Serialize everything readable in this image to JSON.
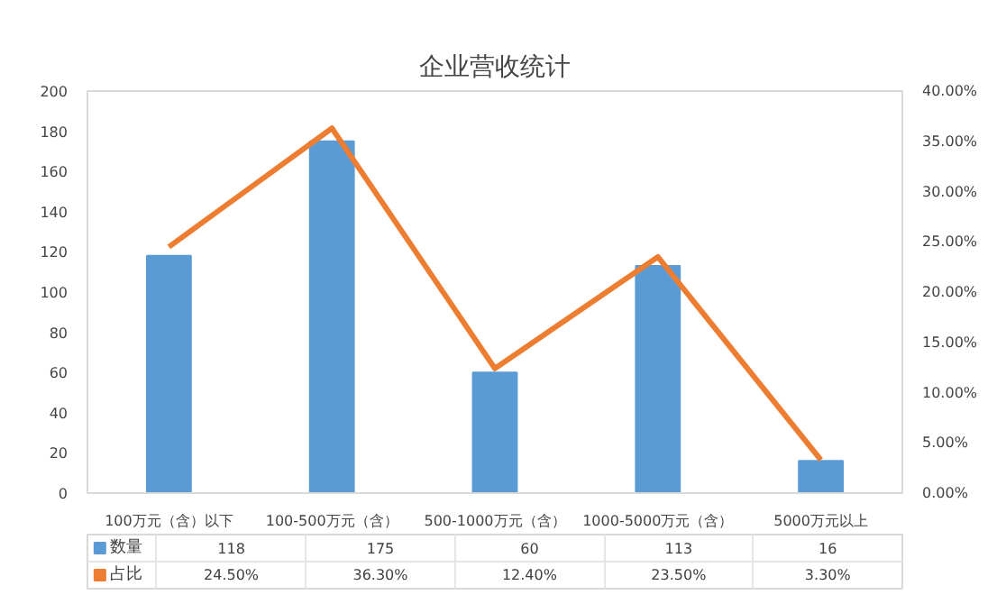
{
  "chart_data": {
    "type": "bar",
    "title": "企业营收统计",
    "categories": [
      "100万元（含）以下",
      "100-500万元（含）",
      "500-1000万元（含）",
      "1000-5000万元（含）",
      "5000万元以上"
    ],
    "series": [
      {
        "name": "数量",
        "color": "#5b9bd5",
        "values": [
          118,
          175,
          60,
          113,
          16
        ],
        "value_labels": [
          "118",
          "175",
          "60",
          "113",
          "16"
        ]
      },
      {
        "name": "占比",
        "type": "line",
        "axis": "y2",
        "color": "#ed7d31",
        "values": [
          24.5,
          36.3,
          12.4,
          23.5,
          3.3
        ],
        "value_labels": [
          "24.50%",
          "36.30%",
          "12.40%",
          "23.50%",
          "3.30%"
        ]
      }
    ],
    "ylim": [
      0,
      200
    ],
    "yticks": [
      0,
      20,
      40,
      60,
      80,
      100,
      120,
      140,
      160,
      180,
      200
    ],
    "y2lim": [
      0,
      40
    ],
    "y2ticks": [
      {
        "value": 0,
        "label": "0.00%"
      },
      {
        "value": 5,
        "label": "5.00%"
      },
      {
        "value": 10,
        "label": "10.00%"
      },
      {
        "value": 15,
        "label": "15.00%"
      },
      {
        "value": 20,
        "label": "20.00%"
      },
      {
        "value": 25,
        "label": "25.00%"
      },
      {
        "value": 30,
        "label": "30.00%"
      },
      {
        "value": 35,
        "label": "35.00%"
      },
      {
        "value": 40,
        "label": "40.00%"
      }
    ],
    "grid": false,
    "legend": "bottom"
  }
}
